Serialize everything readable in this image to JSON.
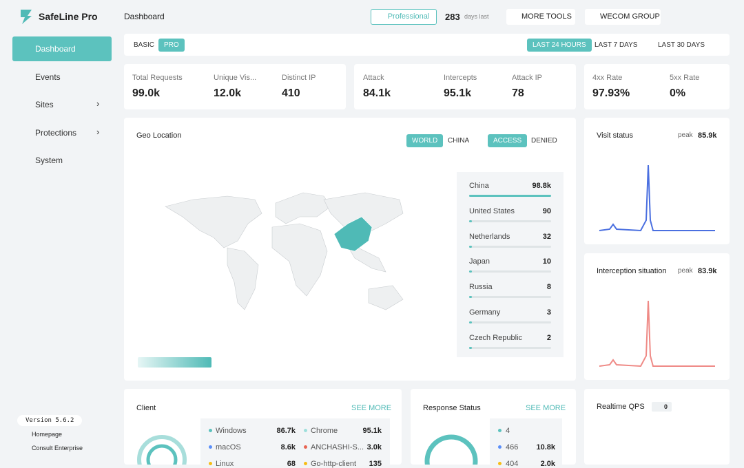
{
  "sidebar": {
    "brand": "SafeLine Pro",
    "menu": [
      "Dashboard",
      "Events",
      "Sites",
      "Protections",
      "System"
    ],
    "version": "Version 5.6.2",
    "links": [
      "Homepage",
      "Consult Enterprise"
    ]
  },
  "topbar": {
    "title": "Dashboard",
    "edition": "Professional",
    "days": "283",
    "days_label": "days last",
    "tools": [
      "MORE TOOLS",
      "WECOM GROUP"
    ]
  },
  "filters": {
    "modes": [
      "BASIC",
      "PRO"
    ],
    "ranges": [
      "LAST 24 HOURS",
      "LAST 7 DAYS",
      "LAST 30 DAYS"
    ]
  },
  "stats": [
    {
      "label": "Total Requests",
      "value": "99.0k"
    },
    {
      "label": "Unique Vis...",
      "value": "12.0k"
    },
    {
      "label": "Distinct IP",
      "value": "410"
    },
    {
      "label": "Attack",
      "value": "84.1k"
    },
    {
      "label": "Intercepts",
      "value": "95.1k"
    },
    {
      "label": "Attack IP",
      "value": "78"
    },
    {
      "label": "4xx Rate",
      "value": "97.93%"
    },
    {
      "label": "5xx Rate",
      "value": "0%"
    }
  ],
  "geo": {
    "title": "Geo Location",
    "tabs": [
      "WORLD",
      "CHINA"
    ],
    "filter": [
      "ACCESS",
      "DENIED"
    ],
    "rows": [
      {
        "name": "China",
        "value": "98.8k"
      },
      {
        "name": "United States",
        "value": "90"
      },
      {
        "name": "Netherlands",
        "value": "32"
      },
      {
        "name": "Japan",
        "value": "10"
      },
      {
        "name": "Russia",
        "value": "8"
      },
      {
        "name": "Germany",
        "value": "3"
      },
      {
        "name": "Czech Republic",
        "value": "2"
      }
    ]
  },
  "visit": {
    "title": "Visit status",
    "peak_label": "peak",
    "peak": "85.9k"
  },
  "interception": {
    "title": "Interception situation",
    "peak_label": "peak",
    "peak": "83.9k"
  },
  "client": {
    "title": "Client",
    "more": "SEE MORE",
    "rows": [
      [
        "Windows",
        "86.7k",
        "Chrome",
        "95.1k"
      ],
      [
        "macOS",
        "8.6k",
        "ANCHASHI-S...",
        "3.0k"
      ],
      [
        "Linux",
        "68",
        "Go-http-client",
        "135"
      ]
    ]
  },
  "response": {
    "title": "Response Status",
    "more": "SEE MORE",
    "rows": [
      [
        "4",
        ""
      ],
      [
        "466",
        "10.8k"
      ],
      [
        "404",
        "2.0k"
      ]
    ]
  },
  "qps": {
    "title": "Realtime QPS",
    "value": "0"
  }
}
